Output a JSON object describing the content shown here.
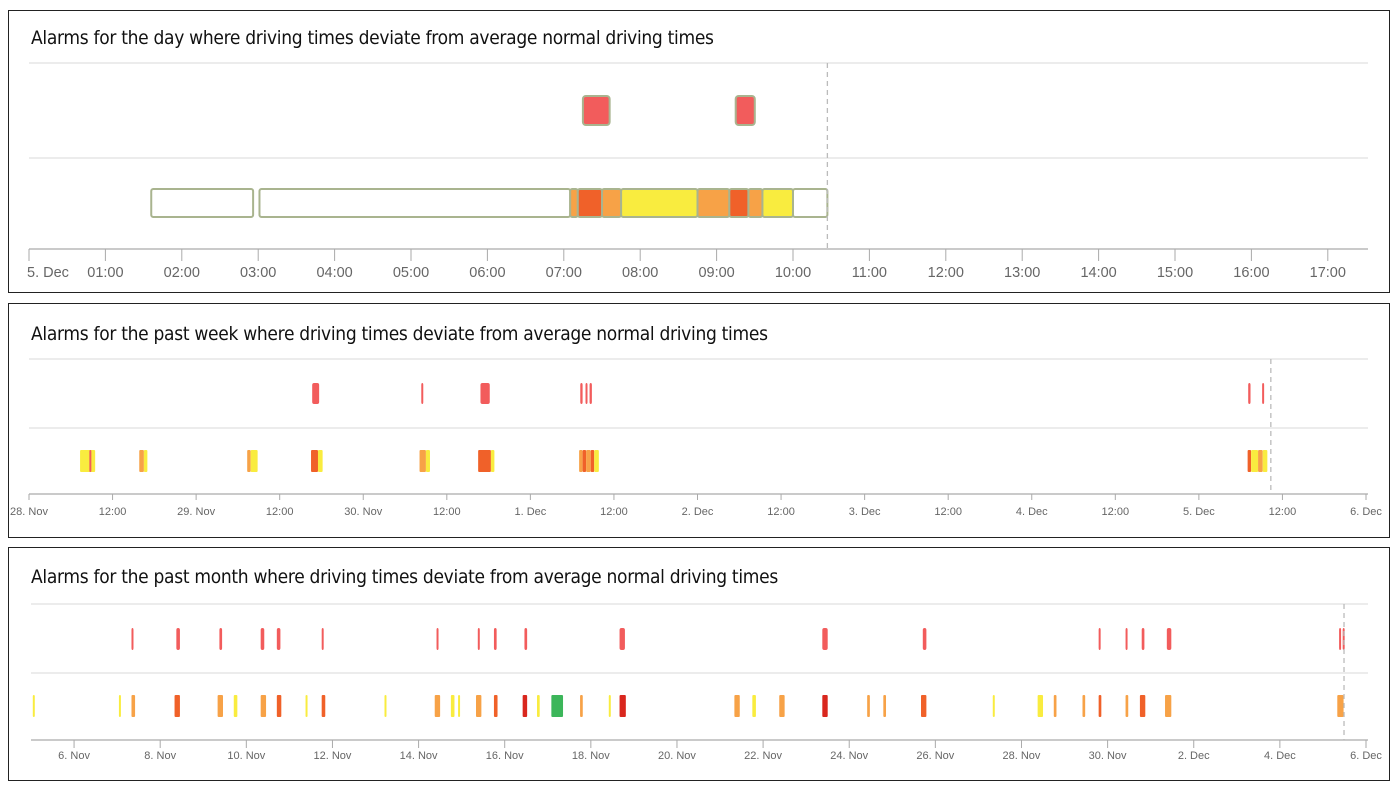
{
  "colors": {
    "yellow": "#f9ec3f",
    "orange": "#f7a247",
    "redorange": "#f06129",
    "alarm": "#f25c5c",
    "darkred": "#d9271e",
    "green": "#3cb65a",
    "none": "#ffffff",
    "none_border": "#a9b48f",
    "grid": "#d9d9d9",
    "axis": "#aaaaaa",
    "now_line": "#bbbbbb"
  },
  "chart_data": [
    {
      "type": "timeline",
      "title": "Alarms for the day where driving times deviate from average normal driving times",
      "xlim": [
        "Dec 5 00:00",
        "Dec 5 17:30"
      ],
      "now": "Dec 5 10:27",
      "ticks": [
        {
          "t": "Dec 5 00:00",
          "label": "5. Dec"
        },
        {
          "t": "Dec 5 01:00",
          "label": "01:00"
        },
        {
          "t": "Dec 5 02:00",
          "label": "02:00"
        },
        {
          "t": "Dec 5 03:00",
          "label": "03:00"
        },
        {
          "t": "Dec 5 04:00",
          "label": "04:00"
        },
        {
          "t": "Dec 5 05:00",
          "label": "05:00"
        },
        {
          "t": "Dec 5 06:00",
          "label": "06:00"
        },
        {
          "t": "Dec 5 07:00",
          "label": "07:00"
        },
        {
          "t": "Dec 5 08:00",
          "label": "08:00"
        },
        {
          "t": "Dec 5 09:00",
          "label": "09:00"
        },
        {
          "t": "Dec 5 10:00",
          "label": "10:00"
        },
        {
          "t": "Dec 5 11:00",
          "label": "11:00"
        },
        {
          "t": "Dec 5 12:00",
          "label": "12:00"
        },
        {
          "t": "Dec 5 13:00",
          "label": "13:00"
        },
        {
          "t": "Dec 5 14:00",
          "label": "14:00"
        },
        {
          "t": "Dec 5 15:00",
          "label": "15:00"
        },
        {
          "t": "Dec 5 16:00",
          "label": "16:00"
        },
        {
          "t": "Dec 5 17:00",
          "label": "17:00"
        }
      ],
      "alarms": [
        {
          "start": "Dec 5 07:15",
          "end": "Dec 5 07:36"
        },
        {
          "start": "Dec 5 09:15",
          "end": "Dec 5 09:30"
        }
      ],
      "segments": [
        {
          "start": "Dec 5 01:36",
          "end": "Dec 5 02:56",
          "level": "none"
        },
        {
          "start": "Dec 5 03:01",
          "end": "Dec 5 07:05",
          "level": "none"
        },
        {
          "start": "Dec 5 07:05",
          "end": "Dec 5 07:11",
          "level": "orange"
        },
        {
          "start": "Dec 5 07:11",
          "end": "Dec 5 07:30",
          "level": "redorange"
        },
        {
          "start": "Dec 5 07:30",
          "end": "Dec 5 07:45",
          "level": "orange"
        },
        {
          "start": "Dec 5 07:45",
          "end": "Dec 5 08:45",
          "level": "yellow"
        },
        {
          "start": "Dec 5 08:45",
          "end": "Dec 5 09:10",
          "level": "orange"
        },
        {
          "start": "Dec 5 09:10",
          "end": "Dec 5 09:25",
          "level": "redorange"
        },
        {
          "start": "Dec 5 09:25",
          "end": "Dec 5 09:36",
          "level": "orange"
        },
        {
          "start": "Dec 5 09:36",
          "end": "Dec 5 10:00",
          "level": "yellow"
        },
        {
          "start": "Dec 5 10:00",
          "end": "Dec 5 10:27",
          "level": "none"
        }
      ]
    },
    {
      "type": "timeline",
      "title": "Alarms for the past week where driving times deviate from average normal driving times",
      "xlim": [
        "Nov 28 00:00",
        "Dec 6 00:00"
      ],
      "now": "Dec 5 10:20",
      "ticks": [
        {
          "t": "Nov 28 00:00",
          "label": "28. Nov"
        },
        {
          "t": "Nov 28 12:00",
          "label": "12:00"
        },
        {
          "t": "Nov 29 00:00",
          "label": "29. Nov"
        },
        {
          "t": "Nov 29 12:00",
          "label": "12:00"
        },
        {
          "t": "Nov 30 00:00",
          "label": "30. Nov"
        },
        {
          "t": "Nov 30 12:00",
          "label": "12:00"
        },
        {
          "t": "Dec 1 00:00",
          "label": "1. Dec"
        },
        {
          "t": "Dec 1 12:00",
          "label": "12:00"
        },
        {
          "t": "Dec 2 00:00",
          "label": "2. Dec"
        },
        {
          "t": "Dec 2 12:00",
          "label": "12:00"
        },
        {
          "t": "Dec 3 00:00",
          "label": "3. Dec"
        },
        {
          "t": "Dec 3 12:00",
          "label": "12:00"
        },
        {
          "t": "Dec 4 00:00",
          "label": "4. Dec"
        },
        {
          "t": "Dec 4 12:00",
          "label": "12:00"
        },
        {
          "t": "Dec 5 00:00",
          "label": "5. Dec"
        },
        {
          "t": "Dec 5 12:00",
          "label": "12:00"
        },
        {
          "t": "Dec 6 00:00",
          "label": "6. Dec"
        }
      ],
      "alarms": [
        {
          "start": "Nov 29 16:40",
          "end": "Nov 29 17:40"
        },
        {
          "start": "Nov 30 08:20",
          "end": "Nov 30 08:35"
        },
        {
          "start": "Nov 30 16:50",
          "end": "Nov 30 18:10"
        },
        {
          "start": "Dec 1 07:10",
          "end": "Dec 1 07:30"
        },
        {
          "start": "Dec 1 07:55",
          "end": "Dec 1 08:10"
        },
        {
          "start": "Dec 1 08:30",
          "end": "Dec 1 08:50"
        },
        {
          "start": "Dec 5 07:05",
          "end": "Dec 5 07:25"
        },
        {
          "start": "Dec 5 09:05",
          "end": "Dec 5 09:20"
        }
      ],
      "segments": [
        {
          "start": "Nov 28 07:20",
          "end": "Nov 28 09:30",
          "level": "yellow"
        },
        {
          "start": "Nov 28 08:40",
          "end": "Nov 28 08:50",
          "level": "alarm"
        },
        {
          "start": "Nov 28 15:50",
          "end": "Nov 28 16:30",
          "level": "orange"
        },
        {
          "start": "Nov 28 16:30",
          "end": "Nov 28 17:00",
          "level": "yellow"
        },
        {
          "start": "Nov 29 07:20",
          "end": "Nov 29 07:50",
          "level": "orange"
        },
        {
          "start": "Nov 29 07:50",
          "end": "Nov 29 08:50",
          "level": "yellow"
        },
        {
          "start": "Nov 29 16:30",
          "end": "Nov 29 17:30",
          "level": "redorange"
        },
        {
          "start": "Nov 29 17:30",
          "end": "Nov 29 18:10",
          "level": "yellow"
        },
        {
          "start": "Nov 30 08:05",
          "end": "Nov 30 09:00",
          "level": "orange"
        },
        {
          "start": "Nov 30 09:00",
          "end": "Nov 30 09:35",
          "level": "yellow"
        },
        {
          "start": "Nov 30 16:30",
          "end": "Nov 30 18:20",
          "level": "redorange"
        },
        {
          "start": "Nov 30 18:20",
          "end": "Nov 30 18:50",
          "level": "yellow"
        },
        {
          "start": "Dec 1 07:00",
          "end": "Dec 1 07:30",
          "level": "orange"
        },
        {
          "start": "Dec 1 07:30",
          "end": "Dec 1 08:00",
          "level": "redorange"
        },
        {
          "start": "Dec 1 08:00",
          "end": "Dec 1 08:40",
          "level": "orange"
        },
        {
          "start": "Dec 1 08:40",
          "end": "Dec 1 09:10",
          "level": "redorange"
        },
        {
          "start": "Dec 1 09:10",
          "end": "Dec 1 09:50",
          "level": "yellow"
        },
        {
          "start": "Dec 5 07:00",
          "end": "Dec 5 07:30",
          "level": "redorange"
        },
        {
          "start": "Dec 5 07:30",
          "end": "Dec 5 08:30",
          "level": "yellow"
        },
        {
          "start": "Dec 5 08:30",
          "end": "Dec 5 09:10",
          "level": "orange"
        },
        {
          "start": "Dec 5 09:10",
          "end": "Dec 5 09:50",
          "level": "yellow"
        }
      ]
    },
    {
      "type": "timeline",
      "title": "Alarms for the past month where driving times deviate from average normal driving times",
      "xlim": [
        "Nov 5 00:00",
        "Dec 6 00:00"
      ],
      "now": "Dec 5 11:45",
      "ticks": [
        {
          "t": "Nov 6 00:00",
          "label": "6. Nov"
        },
        {
          "t": "Nov 8 00:00",
          "label": "8. Nov"
        },
        {
          "t": "Nov 10 00:00",
          "label": "10. Nov"
        },
        {
          "t": "Nov 12 00:00",
          "label": "12. Nov"
        },
        {
          "t": "Nov 14 00:00",
          "label": "14. Nov"
        },
        {
          "t": "Nov 16 00:00",
          "label": "16. Nov"
        },
        {
          "t": "Nov 18 00:00",
          "label": "18. Nov"
        },
        {
          "t": "Nov 20 00:00",
          "label": "20. Nov"
        },
        {
          "t": "Nov 22 00:00",
          "label": "22. Nov"
        },
        {
          "t": "Nov 24 00:00",
          "label": "24. Nov"
        },
        {
          "t": "Nov 26 00:00",
          "label": "26. Nov"
        },
        {
          "t": "Nov 28 00:00",
          "label": "28. Nov"
        },
        {
          "t": "Nov 30 00:00",
          "label": "30. Nov"
        },
        {
          "t": "Dec 2 00:00",
          "label": "2. Dec"
        },
        {
          "t": "Dec 4 00:00",
          "label": "4. Dec"
        },
        {
          "t": "Dec 6 00:00",
          "label": "6. Dec"
        }
      ],
      "alarms": [
        {
          "start": "Nov 7 08:00",
          "end": "Nov 7 09:00"
        },
        {
          "start": "Nov 8 09:00",
          "end": "Nov 8 11:00"
        },
        {
          "start": "Nov 9 09:00",
          "end": "Nov 9 10:30"
        },
        {
          "start": "Nov 10 08:00",
          "end": "Nov 10 10:00"
        },
        {
          "start": "Nov 10 17:00",
          "end": "Nov 10 19:00"
        },
        {
          "start": "Nov 11 18:00",
          "end": "Nov 11 19:00"
        },
        {
          "start": "Nov 14 10:00",
          "end": "Nov 14 11:00"
        },
        {
          "start": "Nov 15 09:00",
          "end": "Nov 15 10:00"
        },
        {
          "start": "Nov 15 18:00",
          "end": "Nov 15 19:30"
        },
        {
          "start": "Nov 16 11:00",
          "end": "Nov 16 12:30"
        },
        {
          "start": "Nov 18 16:00",
          "end": "Nov 18 19:00"
        },
        {
          "start": "Nov 23 09:00",
          "end": "Nov 23 12:00"
        },
        {
          "start": "Nov 25 17:00",
          "end": "Nov 25 19:00"
        },
        {
          "start": "Nov 29 19:00",
          "end": "Nov 29 20:00"
        },
        {
          "start": "Nov 30 10:00",
          "end": "Nov 30 11:00"
        },
        {
          "start": "Nov 30 19:00",
          "end": "Nov 30 20:30"
        },
        {
          "start": "Dec 1 09:00",
          "end": "Dec 1 11:30"
        },
        {
          "start": "Dec 5 09:00",
          "end": "Dec 5 10:00"
        },
        {
          "start": "Dec 5 11:00",
          "end": "Dec 5 12:00"
        }
      ],
      "segments": [
        {
          "start": "Nov 5 01:00",
          "end": "Nov 5 02:00",
          "level": "yellow"
        },
        {
          "start": "Nov 7 01:00",
          "end": "Nov 7 02:00",
          "level": "yellow"
        },
        {
          "start": "Nov 7 08:00",
          "end": "Nov 7 10:00",
          "level": "orange"
        },
        {
          "start": "Nov 8 08:00",
          "end": "Nov 8 11:00",
          "level": "redorange"
        },
        {
          "start": "Nov 9 08:00",
          "end": "Nov 9 11:00",
          "level": "orange"
        },
        {
          "start": "Nov 9 17:00",
          "end": "Nov 9 19:00",
          "level": "yellow"
        },
        {
          "start": "Nov 10 08:00",
          "end": "Nov 10 11:00",
          "level": "orange"
        },
        {
          "start": "Nov 10 17:00",
          "end": "Nov 10 19:30",
          "level": "redorange"
        },
        {
          "start": "Nov 11 09:00",
          "end": "Nov 11 10:00",
          "level": "yellow"
        },
        {
          "start": "Nov 11 18:00",
          "end": "Nov 11 20:00",
          "level": "redorange"
        },
        {
          "start": "Nov 13 05:00",
          "end": "Nov 13 06:00",
          "level": "yellow"
        },
        {
          "start": "Nov 14 09:00",
          "end": "Nov 14 12:00",
          "level": "orange"
        },
        {
          "start": "Nov 14 18:00",
          "end": "Nov 14 20:00",
          "level": "yellow"
        },
        {
          "start": "Nov 14 22:00",
          "end": "Nov 14 23:00",
          "level": "yellow"
        },
        {
          "start": "Nov 15 08:00",
          "end": "Nov 15 11:00",
          "level": "orange"
        },
        {
          "start": "Nov 15 18:00",
          "end": "Nov 15 20:00",
          "level": "redorange"
        },
        {
          "start": "Nov 16 10:00",
          "end": "Nov 16 12:30",
          "level": "darkred"
        },
        {
          "start": "Nov 16 18:00",
          "end": "Nov 16 19:30",
          "level": "yellow"
        },
        {
          "start": "Nov 17 02:00",
          "end": "Nov 17 08:30",
          "level": "green"
        },
        {
          "start": "Nov 17 18:00",
          "end": "Nov 17 19:30",
          "level": "orange"
        },
        {
          "start": "Nov 18 10:00",
          "end": "Nov 18 11:00",
          "level": "yellow"
        },
        {
          "start": "Nov 18 16:00",
          "end": "Nov 18 19:30",
          "level": "darkred"
        },
        {
          "start": "Nov 21 08:00",
          "end": "Nov 21 11:00",
          "level": "orange"
        },
        {
          "start": "Nov 21 18:00",
          "end": "Nov 21 20:00",
          "level": "yellow"
        },
        {
          "start": "Nov 22 09:00",
          "end": "Nov 22 12:00",
          "level": "orange"
        },
        {
          "start": "Nov 23 09:00",
          "end": "Nov 23 12:00",
          "level": "darkred"
        },
        {
          "start": "Nov 24 10:00",
          "end": "Nov 24 11:30",
          "level": "orange"
        },
        {
          "start": "Nov 24 19:00",
          "end": "Nov 24 20:30",
          "level": "orange"
        },
        {
          "start": "Nov 25 16:00",
          "end": "Nov 25 19:00",
          "level": "redorange"
        },
        {
          "start": "Nov 27 08:00",
          "end": "Nov 27 09:00",
          "level": "yellow"
        },
        {
          "start": "Nov 28 09:00",
          "end": "Nov 28 12:00",
          "level": "yellow"
        },
        {
          "start": "Nov 28 18:00",
          "end": "Nov 28 19:30",
          "level": "orange"
        },
        {
          "start": "Nov 29 10:00",
          "end": "Nov 29 11:30",
          "level": "orange"
        },
        {
          "start": "Nov 29 19:00",
          "end": "Nov 29 20:30",
          "level": "redorange"
        },
        {
          "start": "Nov 30 10:00",
          "end": "Nov 30 11:30",
          "level": "orange"
        },
        {
          "start": "Nov 30 18:00",
          "end": "Nov 30 21:00",
          "level": "redorange"
        },
        {
          "start": "Dec 1 08:00",
          "end": "Dec 1 11:30",
          "level": "orange"
        },
        {
          "start": "Dec 5 08:00",
          "end": "Dec 5 11:30",
          "level": "orange"
        }
      ]
    }
  ]
}
